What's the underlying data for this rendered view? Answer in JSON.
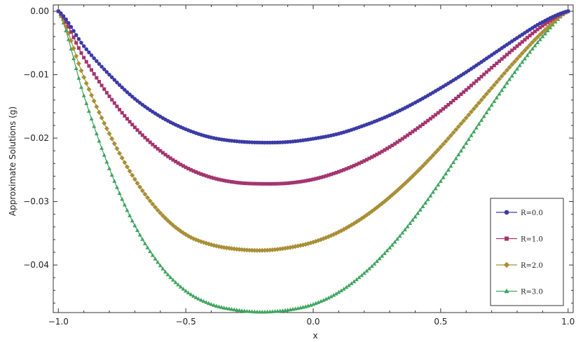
{
  "chart_data": {
    "type": "line",
    "title": "",
    "xlabel": "x",
    "ylabel": "Approximate Solutions (g)",
    "xlim": [
      -1.02,
      1.02
    ],
    "ylim": [
      -0.0475,
      0.001
    ],
    "x_ticks": [
      -1.0,
      -0.5,
      0.0,
      0.5,
      1.0
    ],
    "x_tick_labels": [
      "-1.0",
      "-0.5",
      "0.0",
      "0.5",
      "1.0"
    ],
    "y_ticks": [
      0.0,
      -0.01,
      -0.02,
      -0.03,
      -0.04
    ],
    "y_tick_labels": [
      "0.00",
      "-0.01",
      "-0.02",
      "-0.03",
      "-0.04"
    ],
    "grid": false,
    "legend_position": "bottom-right",
    "x": [
      -1.0,
      -0.9,
      -0.8,
      -0.7,
      -0.6,
      -0.5,
      -0.4,
      -0.3,
      -0.2,
      -0.1,
      0.0,
      0.1,
      0.2,
      0.3,
      0.4,
      0.5,
      0.6,
      0.7,
      0.8,
      0.9,
      1.0
    ],
    "series": [
      {
        "name": "R=0.0",
        "color": "#3b3ba6",
        "marker": "circle",
        "values": [
          0.0,
          -0.0055,
          -0.01,
          -0.0138,
          -0.0166,
          -0.0186,
          -0.0199,
          -0.0205,
          -0.0207,
          -0.0206,
          -0.0201,
          -0.0193,
          -0.018,
          -0.0164,
          -0.0144,
          -0.0121,
          -0.0096,
          -0.0069,
          -0.0042,
          -0.0017,
          0.0
        ]
      },
      {
        "name": "R=1.0",
        "color": "#a4346f",
        "marker": "square",
        "values": [
          0.0,
          -0.0073,
          -0.0134,
          -0.0183,
          -0.022,
          -0.0246,
          -0.0262,
          -0.027,
          -0.0272,
          -0.0271,
          -0.0265,
          -0.0253,
          -0.0236,
          -0.0214,
          -0.0187,
          -0.0157,
          -0.0124,
          -0.0089,
          -0.0055,
          -0.0023,
          0.0
        ]
      },
      {
        "name": "R=2.0",
        "color": "#a88f36",
        "marker": "diamond",
        "values": [
          0.0,
          -0.0104,
          -0.0193,
          -0.0265,
          -0.0318,
          -0.0352,
          -0.0368,
          -0.0375,
          -0.0377,
          -0.0373,
          -0.0364,
          -0.0348,
          -0.0324,
          -0.0293,
          -0.0256,
          -0.0214,
          -0.0168,
          -0.0121,
          -0.0075,
          -0.0033,
          0.0
        ]
      },
      {
        "name": "R=3.0",
        "color": "#3fa55f",
        "marker": "triangle",
        "values": [
          0.0,
          -0.0133,
          -0.0248,
          -0.0338,
          -0.0401,
          -0.0441,
          -0.0462,
          -0.0471,
          -0.0474,
          -0.0471,
          -0.0462,
          -0.0443,
          -0.0413,
          -0.0373,
          -0.0324,
          -0.0268,
          -0.0208,
          -0.0148,
          -0.0091,
          -0.004,
          0.0
        ]
      }
    ]
  }
}
